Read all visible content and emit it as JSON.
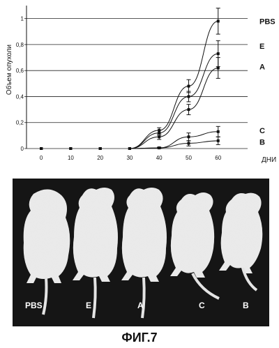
{
  "chart_data": {
    "type": "line",
    "ylabel": "Объем опухоли",
    "xlabel": "ДНИ",
    "x": [
      0,
      10,
      20,
      30,
      40,
      50,
      60
    ],
    "xticks": [
      "0",
      "10",
      "20",
      "30",
      "40",
      "50",
      "60"
    ],
    "yticks": [
      {
        "value": 0,
        "label": "0"
      },
      {
        "value": 0.2,
        "label": "0,2"
      },
      {
        "value": 0.4,
        "label": "0,4"
      },
      {
        "value": 0.6,
        "label": "0,6"
      },
      {
        "value": 0.8,
        "label": "0,8"
      },
      {
        "value": 1.0,
        "label": "1"
      }
    ],
    "ylim": [
      0,
      1.1
    ],
    "xlim": [
      -5,
      70
    ],
    "grid": "horizontal",
    "series": [
      {
        "name": "PBS",
        "values": [
          0,
          0,
          0,
          0,
          0.14,
          0.48,
          0.98
        ],
        "errors": [
          0,
          0,
          0,
          0,
          0.02,
          0.05,
          0.1
        ]
      },
      {
        "name": "E",
        "values": [
          0,
          0,
          0,
          0,
          0.12,
          0.4,
          0.73
        ],
        "errors": [
          0,
          0,
          0,
          0,
          0.02,
          0.04,
          0.1
        ]
      },
      {
        "name": "A",
        "values": [
          0,
          0,
          0,
          0,
          0.09,
          0.3,
          0.62
        ],
        "errors": [
          0,
          0,
          0,
          0,
          0.02,
          0.04,
          0.08
        ]
      },
      {
        "name": "C",
        "values": [
          0,
          0,
          0,
          0,
          0.005,
          0.09,
          0.13
        ],
        "errors": [
          0,
          0,
          0,
          0,
          0.005,
          0.03,
          0.04
        ]
      },
      {
        "name": "B",
        "values": [
          0,
          0,
          0,
          0,
          0.005,
          0.04,
          0.06
        ],
        "errors": [
          0,
          0,
          0,
          0,
          0.005,
          0.02,
          0.03
        ]
      }
    ]
  },
  "photo": {
    "labels": [
      "PBS",
      "E",
      "A",
      "C",
      "B"
    ]
  },
  "caption": "ФИГ.7"
}
